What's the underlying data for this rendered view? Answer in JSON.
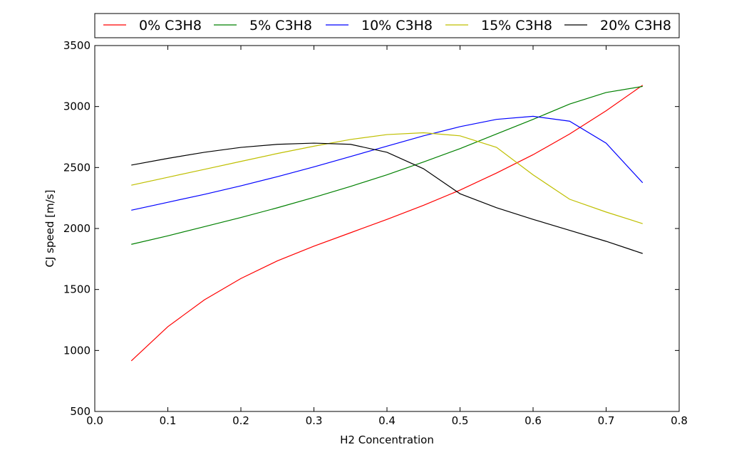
{
  "chart_data": {
    "type": "line",
    "title": "",
    "xlabel": "H2 Concentration",
    "ylabel": "CJ speed [m/s]",
    "xlim": [
      0.0,
      0.8
    ],
    "ylim": [
      500,
      3500
    ],
    "xticks": [
      "0.0",
      "0.1",
      "0.2",
      "0.3",
      "0.4",
      "0.5",
      "0.6",
      "0.7",
      "0.8"
    ],
    "yticks": [
      "500",
      "1000",
      "1500",
      "2000",
      "2500",
      "3000",
      "3500"
    ],
    "grid": false,
    "legend_position": "top",
    "x": [
      0.05,
      0.1,
      0.15,
      0.2,
      0.25,
      0.3,
      0.35,
      0.4,
      0.45,
      0.5,
      0.55,
      0.6,
      0.65,
      0.7,
      0.75
    ],
    "series": [
      {
        "name": "0% C3H8",
        "color": "#ff0000",
        "values": [
          915,
          1195,
          1415,
          1590,
          1735,
          1855,
          1965,
          2075,
          2190,
          2315,
          2455,
          2605,
          2775,
          2965,
          3175
        ]
      },
      {
        "name": "5% C3H8",
        "color": "#008000",
        "values": [
          1870,
          1940,
          2015,
          2090,
          2170,
          2255,
          2345,
          2440,
          2545,
          2655,
          2775,
          2895,
          3020,
          3115,
          3165
        ]
      },
      {
        "name": "10% C3H8",
        "color": "#0000ff",
        "values": [
          2150,
          2215,
          2280,
          2350,
          2425,
          2505,
          2590,
          2675,
          2760,
          2835,
          2895,
          2920,
          2880,
          2700,
          2375
        ]
      },
      {
        "name": "15% C3H8",
        "color": "#bfbf00",
        "values": [
          2355,
          2420,
          2485,
          2550,
          2615,
          2675,
          2730,
          2770,
          2785,
          2760,
          2665,
          2440,
          2240,
          2135,
          2040
        ]
      },
      {
        "name": "20% C3H8",
        "color": "#000000",
        "values": [
          2520,
          2575,
          2625,
          2665,
          2690,
          2700,
          2690,
          2625,
          2490,
          2285,
          2170,
          2075,
          1985,
          1895,
          1795
        ]
      }
    ]
  }
}
